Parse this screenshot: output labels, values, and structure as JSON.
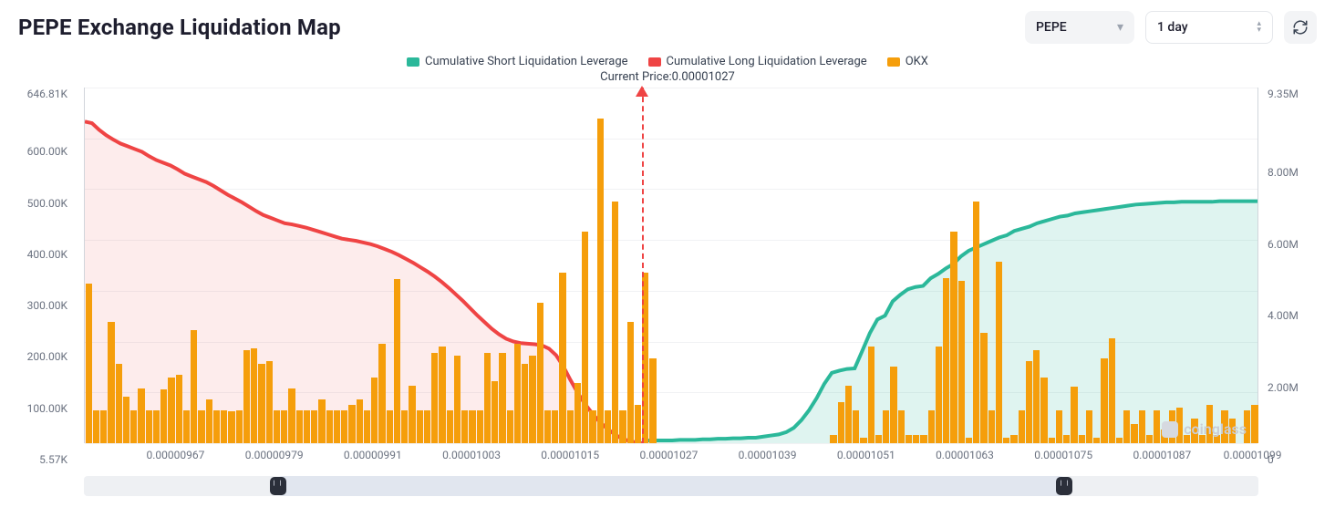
{
  "header": {
    "title": "PEPE Exchange Liquidation Map",
    "asset_select": {
      "label": "PEPE"
    },
    "range_select": {
      "label": "1 day"
    }
  },
  "legend": {
    "short": {
      "label": "Cumulative Short Liquidation Leverage",
      "color": "#2bb89a"
    },
    "long": {
      "label": "Cumulative Long Liquidation Leverage",
      "color": "#ef4444"
    },
    "bars": {
      "label": "OKX",
      "color": "#f59e0b"
    }
  },
  "current_price": {
    "prefix": "Current Price:",
    "value": "0.00001027"
  },
  "watermark": "coinglass",
  "chart": {
    "colors": {
      "bar": "#f59e0b",
      "short_line": "#2bb89a",
      "short_fill": "rgba(43,184,154,0.15)",
      "long_line": "#ef4444",
      "long_fill": "rgba(239,68,68,0.10)",
      "guide": "#ef4444",
      "grid": "#f1f2f4",
      "axis": "#6b7280"
    },
    "y_left": {
      "max": 646.81,
      "ticks": [
        "646.81K",
        "600.00K",
        "500.00K",
        "400.00K",
        "300.00K",
        "200.00K",
        "100.00K",
        "5.57K"
      ]
    },
    "y_right": {
      "max": 9.35,
      "ticks": [
        "9.35M",
        "",
        "8.00M",
        "",
        "6.00M",
        "",
        "4.00M",
        "",
        "2.00M",
        "",
        "0"
      ]
    },
    "x_ticks": [
      {
        "pos": 0.078,
        "label": "0.00000967"
      },
      {
        "pos": 0.162,
        "label": "0.00000979"
      },
      {
        "pos": 0.246,
        "label": "0.00000991"
      },
      {
        "pos": 0.33,
        "label": "0.00001003"
      },
      {
        "pos": 0.414,
        "label": "0.00001015"
      },
      {
        "pos": 0.498,
        "label": "0.00001027"
      },
      {
        "pos": 0.582,
        "label": "0.00001039"
      },
      {
        "pos": 0.666,
        "label": "0.00001051"
      },
      {
        "pos": 0.75,
        "label": "0.00001063"
      },
      {
        "pos": 0.834,
        "label": "0.00001075"
      },
      {
        "pos": 0.918,
        "label": "0.00001087"
      },
      {
        "pos": 0.995,
        "label": "0.00001099"
      }
    ],
    "guide_position": 0.475,
    "bars": [
      290,
      60,
      60,
      220,
      145,
      85,
      60,
      100,
      60,
      60,
      98,
      120,
      125,
      60,
      205,
      60,
      80,
      60,
      60,
      58,
      60,
      170,
      172,
      145,
      150,
      60,
      60,
      100,
      60,
      60,
      60,
      80,
      60,
      60,
      60,
      70,
      80,
      60,
      120,
      180,
      60,
      298,
      60,
      105,
      60,
      60,
      165,
      175,
      60,
      160,
      60,
      60,
      60,
      165,
      112,
      165,
      60,
      180,
      145,
      160,
      255,
      60,
      60,
      310,
      60,
      110,
      385,
      60,
      590,
      60,
      440,
      60,
      220,
      70,
      310,
      155,
      0,
      0,
      0,
      0,
      0,
      0,
      0,
      0,
      0,
      0,
      0,
      0,
      0,
      0,
      0,
      0,
      0,
      0,
      0,
      0,
      0,
      0,
      0,
      15,
      75,
      105,
      60,
      10,
      175,
      15,
      60,
      140,
      60,
      15,
      15,
      15,
      60,
      175,
      300,
      385,
      295,
      10,
      440,
      200,
      60,
      330,
      10,
      15,
      60,
      150,
      170,
      120,
      10,
      60,
      15,
      103,
      15,
      60,
      10,
      155,
      190,
      10,
      60,
      35,
      60,
      15,
      60,
      25,
      60,
      65,
      15,
      45,
      15,
      70,
      15,
      60,
      45,
      0,
      60,
      70
    ],
    "long_curve": [
      585,
      582,
      570,
      560,
      552,
      545,
      540,
      535,
      530,
      522,
      515,
      510,
      505,
      498,
      490,
      485,
      480,
      475,
      468,
      460,
      452,
      445,
      438,
      430,
      422,
      415,
      410,
      405,
      400,
      398,
      395,
      392,
      388,
      384,
      380,
      376,
      372,
      370,
      368,
      365,
      362,
      358,
      353,
      348,
      342,
      335,
      328,
      320,
      312,
      303,
      293,
      282,
      270,
      258,
      245,
      232,
      220,
      208,
      198,
      190,
      185,
      182,
      181,
      180,
      178,
      172,
      160,
      140,
      115,
      92,
      72,
      55,
      40,
      28,
      18,
      10,
      5,
      2,
      0
    ],
    "short_curve": [
      5,
      5,
      5,
      5,
      5,
      6,
      6,
      6,
      7,
      7,
      8,
      8,
      9,
      9,
      10,
      10,
      12,
      14,
      16,
      20,
      28,
      42,
      60,
      82,
      108,
      128,
      132,
      135,
      136,
      168,
      200,
      225,
      232,
      258,
      270,
      280,
      284,
      286,
      300,
      308,
      318,
      326,
      340,
      350,
      356,
      362,
      368,
      374,
      378,
      386,
      390,
      394,
      400,
      404,
      408,
      412,
      414,
      418,
      420,
      422,
      424,
      426,
      428,
      430,
      432,
      434,
      435,
      436,
      437,
      438,
      438,
      439,
      439,
      439,
      439,
      439,
      440,
      440,
      440,
      440,
      440,
      440
    ],
    "short_curve_start": 0.475,
    "scroll": {
      "range_start": 0.165,
      "range_end": 0.835
    }
  }
}
